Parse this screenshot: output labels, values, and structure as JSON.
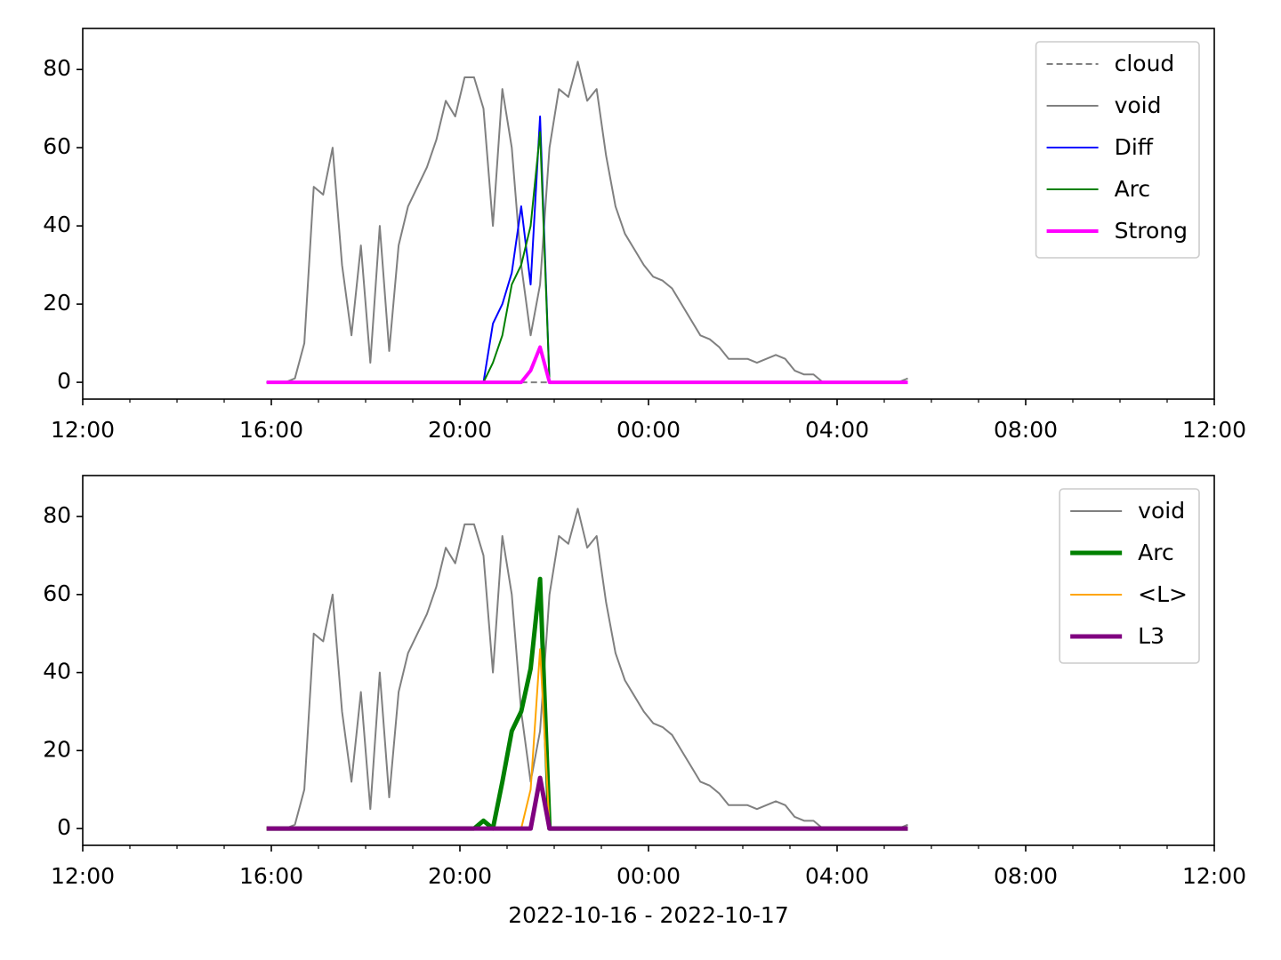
{
  "chart_data": [
    {
      "type": "line",
      "x": [
        3.9,
        4.1,
        4.3,
        4.5,
        4.7,
        4.9,
        5.1,
        5.3,
        5.5,
        5.7,
        5.9,
        6.1,
        6.3,
        6.5,
        6.7,
        6.9,
        7.1,
        7.3,
        7.5,
        7.7,
        7.9,
        8.1,
        8.3,
        8.5,
        8.7,
        8.9,
        9.1,
        9.3,
        9.5,
        9.7,
        9.9,
        10.1,
        10.3,
        10.5,
        10.7,
        10.9,
        11.1,
        11.3,
        11.5,
        11.7,
        11.9,
        12.1,
        12.3,
        12.5,
        12.7,
        12.9,
        13.1,
        13.3,
        13.5,
        13.7,
        13.9,
        14.1,
        14.3,
        14.5,
        14.7,
        14.9,
        15.1,
        15.3,
        15.5,
        15.7,
        15.9,
        16.1,
        16.3,
        16.5,
        16.7,
        16.9,
        17.1,
        17.3,
        17.5
      ],
      "series": [
        {
          "name": "cloud",
          "color": "#808080",
          "linewidth": 2,
          "linestyle": "dashed",
          "values": [
            0,
            0,
            0,
            0,
            0,
            0,
            0,
            0,
            0,
            0,
            0,
            0,
            0,
            0,
            0,
            0,
            0,
            0,
            0,
            0,
            0,
            0,
            0,
            0,
            0,
            0,
            0,
            0,
            0,
            0,
            0,
            0,
            0,
            0,
            0,
            0,
            0,
            0,
            0,
            0,
            0,
            0,
            0,
            0,
            0,
            0,
            0,
            0,
            0,
            0,
            0,
            0,
            0,
            0,
            0,
            0,
            0,
            0,
            0,
            0,
            0,
            0,
            0,
            0,
            0,
            0,
            0,
            0,
            0
          ]
        },
        {
          "name": "void",
          "color": "#808080",
          "linewidth": 2,
          "values": [
            0,
            0,
            0,
            1,
            10,
            50,
            48,
            60,
            30,
            12,
            35,
            5,
            40,
            8,
            35,
            45,
            50,
            55,
            62,
            72,
            68,
            78,
            78,
            70,
            40,
            75,
            60,
            30,
            12,
            25,
            60,
            75,
            73,
            82,
            72,
            75,
            58,
            45,
            38,
            34,
            30,
            27,
            26,
            24,
            20,
            16,
            12,
            11,
            9,
            6,
            6,
            6,
            5,
            6,
            7,
            6,
            3,
            2,
            2,
            0,
            0,
            0,
            0,
            0,
            0,
            0,
            0,
            0,
            1
          ]
        },
        {
          "name": "Diff",
          "color": "#0000ff",
          "linewidth": 2,
          "values": [
            0,
            0,
            0,
            0,
            0,
            0,
            0,
            0,
            0,
            0,
            0,
            0,
            0,
            0,
            0,
            0,
            0,
            0,
            0,
            0,
            0,
            0,
            0,
            0,
            15,
            20,
            28,
            45,
            25,
            68,
            0,
            0,
            0,
            0,
            0,
            0,
            0,
            0,
            0,
            0,
            0,
            0,
            0,
            0,
            0,
            0,
            0,
            0,
            0,
            0,
            0,
            0,
            0,
            0,
            0,
            0,
            0,
            0,
            0,
            0,
            0,
            0,
            0,
            0,
            0,
            0,
            0,
            0,
            0
          ]
        },
        {
          "name": "Arc",
          "color": "#008000",
          "linewidth": 2,
          "values": [
            0,
            0,
            0,
            0,
            0,
            0,
            0,
            0,
            0,
            0,
            0,
            0,
            0,
            0,
            0,
            0,
            0,
            0,
            0,
            0,
            0,
            0,
            0,
            0,
            5,
            12,
            25,
            30,
            40,
            64,
            0,
            0,
            0,
            0,
            0,
            0,
            0,
            0,
            0,
            0,
            0,
            0,
            0,
            0,
            0,
            0,
            0,
            0,
            0,
            0,
            0,
            0,
            0,
            0,
            0,
            0,
            0,
            0,
            0,
            0,
            0,
            0,
            0,
            0,
            0,
            0,
            0,
            0,
            0
          ]
        },
        {
          "name": "Strong",
          "color": "#ff00ff",
          "linewidth": 4,
          "values": [
            0,
            0,
            0,
            0,
            0,
            0,
            0,
            0,
            0,
            0,
            0,
            0,
            0,
            0,
            0,
            0,
            0,
            0,
            0,
            0,
            0,
            0,
            0,
            0,
            0,
            0,
            0,
            0,
            3,
            9,
            0,
            0,
            0,
            0,
            0,
            0,
            0,
            0,
            0,
            0,
            0,
            0,
            0,
            0,
            0,
            0,
            0,
            0,
            0,
            0,
            0,
            0,
            0,
            0,
            0,
            0,
            0,
            0,
            0,
            0,
            0,
            0,
            0,
            0,
            0,
            0,
            0,
            0,
            0
          ]
        }
      ],
      "xlim": [
        0,
        24
      ],
      "xticks": [
        {
          "value": 0,
          "label": "12:00"
        },
        {
          "value": 4,
          "label": "16:00"
        },
        {
          "value": 8,
          "label": "20:00"
        },
        {
          "value": 12,
          "label": "00:00"
        },
        {
          "value": 16,
          "label": "04:00"
        },
        {
          "value": 20,
          "label": "08:00"
        },
        {
          "value": 24,
          "label": "12:00"
        }
      ],
      "xminorticks": [
        1,
        2,
        3,
        5,
        6,
        7,
        9,
        10,
        11,
        13,
        14,
        15,
        17,
        18,
        19,
        21,
        22,
        23
      ],
      "ylim": [
        -4.3,
        90.5
      ],
      "yticks": [
        0,
        20,
        40,
        60,
        80
      ],
      "legend": "upper right"
    },
    {
      "type": "line",
      "x": [
        3.9,
        4.1,
        4.3,
        4.5,
        4.7,
        4.9,
        5.1,
        5.3,
        5.5,
        5.7,
        5.9,
        6.1,
        6.3,
        6.5,
        6.7,
        6.9,
        7.1,
        7.3,
        7.5,
        7.7,
        7.9,
        8.1,
        8.3,
        8.5,
        8.7,
        8.9,
        9.1,
        9.3,
        9.5,
        9.7,
        9.9,
        10.1,
        10.3,
        10.5,
        10.7,
        10.9,
        11.1,
        11.3,
        11.5,
        11.7,
        11.9,
        12.1,
        12.3,
        12.5,
        12.7,
        12.9,
        13.1,
        13.3,
        13.5,
        13.7,
        13.9,
        14.1,
        14.3,
        14.5,
        14.7,
        14.9,
        15.1,
        15.3,
        15.5,
        15.7,
        15.9,
        16.1,
        16.3,
        16.5,
        16.7,
        16.9,
        17.1,
        17.3,
        17.5
      ],
      "series": [
        {
          "name": "void",
          "color": "#808080",
          "linewidth": 2,
          "values": [
            0,
            0,
            0,
            1,
            10,
            50,
            48,
            60,
            30,
            12,
            35,
            5,
            40,
            8,
            35,
            45,
            50,
            55,
            62,
            72,
            68,
            78,
            78,
            70,
            40,
            75,
            60,
            30,
            12,
            25,
            60,
            75,
            73,
            82,
            72,
            75,
            58,
            45,
            38,
            34,
            30,
            27,
            26,
            24,
            20,
            16,
            12,
            11,
            9,
            6,
            6,
            6,
            5,
            6,
            7,
            6,
            3,
            2,
            2,
            0,
            0,
            0,
            0,
            0,
            0,
            0,
            0,
            0,
            1
          ]
        },
        {
          "name": "Arc",
          "color": "#008000",
          "linewidth": 5,
          "values": [
            0,
            0,
            0,
            0,
            0,
            0,
            0,
            0,
            0,
            0,
            0,
            0,
            0,
            0,
            0,
            0,
            0,
            0,
            0,
            0,
            0,
            0,
            0,
            2,
            0,
            12,
            25,
            30,
            41,
            64,
            0,
            0,
            0,
            0,
            0,
            0,
            0,
            0,
            0,
            0,
            0,
            0,
            0,
            0,
            0,
            0,
            0,
            0,
            0,
            0,
            0,
            0,
            0,
            0,
            0,
            0,
            0,
            0,
            0,
            0,
            0,
            0,
            0,
            0,
            0,
            0,
            0,
            0,
            0
          ]
        },
        {
          "name": "<L>",
          "color": "#ffa500",
          "linewidth": 2,
          "values": [
            0,
            0,
            0,
            0,
            0,
            0,
            0,
            0,
            0,
            0,
            0,
            0,
            0,
            0,
            0,
            0,
            0,
            0,
            0,
            0,
            0,
            0,
            0,
            0,
            0,
            0,
            0,
            0,
            10,
            46,
            0,
            0,
            0,
            0,
            0,
            0,
            0,
            0,
            0,
            0,
            0,
            0,
            0,
            0,
            0,
            0,
            0,
            0,
            0,
            0,
            0,
            0,
            0,
            0,
            0,
            0,
            0,
            0,
            0,
            0,
            0,
            0,
            0,
            0,
            0,
            0,
            0,
            0,
            0
          ]
        },
        {
          "name": "L3",
          "color": "#800080",
          "linewidth": 5,
          "values": [
            0,
            0,
            0,
            0,
            0,
            0,
            0,
            0,
            0,
            0,
            0,
            0,
            0,
            0,
            0,
            0,
            0,
            0,
            0,
            0,
            0,
            0,
            0,
            0,
            0,
            0,
            0,
            0,
            0,
            13,
            0,
            0,
            0,
            0,
            0,
            0,
            0,
            0,
            0,
            0,
            0,
            0,
            0,
            0,
            0,
            0,
            0,
            0,
            0,
            0,
            0,
            0,
            0,
            0,
            0,
            0,
            0,
            0,
            0,
            0,
            0,
            0,
            0,
            0,
            0,
            0,
            0,
            0,
            0
          ]
        }
      ],
      "xlim": [
        0,
        24
      ],
      "xticks": [
        {
          "value": 0,
          "label": "12:00"
        },
        {
          "value": 4,
          "label": "16:00"
        },
        {
          "value": 8,
          "label": "20:00"
        },
        {
          "value": 12,
          "label": "00:00"
        },
        {
          "value": 16,
          "label": "04:00"
        },
        {
          "value": 20,
          "label": "08:00"
        },
        {
          "value": 24,
          "label": "12:00"
        }
      ],
      "xminorticks": [
        1,
        2,
        3,
        5,
        6,
        7,
        9,
        10,
        11,
        13,
        14,
        15,
        17,
        18,
        19,
        21,
        22,
        23
      ],
      "xlabel": "2022-10-16 - 2022-10-17",
      "ylim": [
        -4.3,
        90.5
      ],
      "yticks": [
        0,
        20,
        40,
        60,
        80
      ],
      "legend": "upper right"
    }
  ]
}
